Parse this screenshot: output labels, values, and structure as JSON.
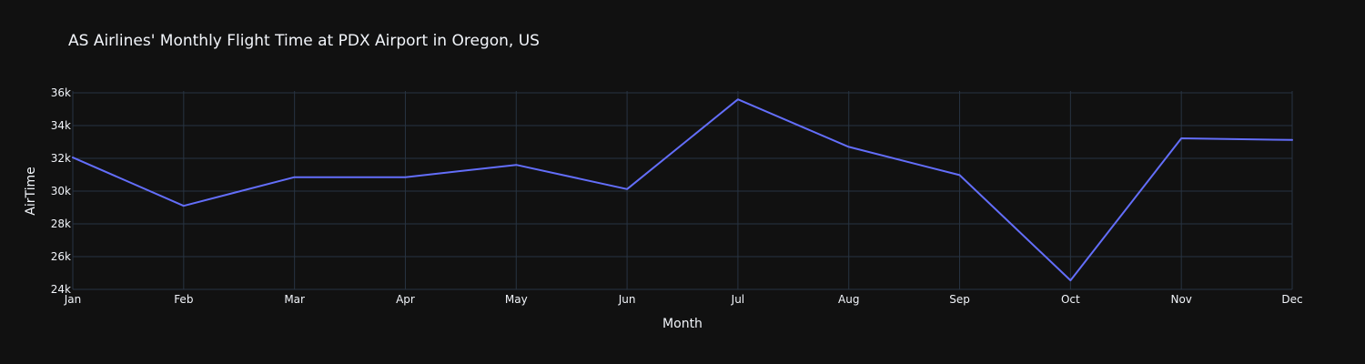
{
  "chart_data": {
    "type": "line",
    "title": "AS Airlines' Monthly Flight Time at PDX Airport in Oregon, US",
    "xlabel": "Month",
    "ylabel": "AirTime",
    "categories": [
      "Jan",
      "Feb",
      "Mar",
      "Apr",
      "May",
      "Jun",
      "Jul",
      "Aug",
      "Sep",
      "Oct",
      "Nov",
      "Dec"
    ],
    "series": [
      {
        "values": [
          32050,
          29100,
          30850,
          30850,
          31600,
          30120,
          35600,
          32700,
          30980,
          24550,
          33220,
          33120
        ]
      }
    ],
    "ylim": [
      24000,
      36500
    ],
    "yticks": [
      24000,
      26000,
      28000,
      30000,
      32000,
      34000,
      36000
    ],
    "ytick_labels": [
      "24k",
      "26k",
      "28k",
      "30k",
      "32k",
      "34k",
      "36k"
    ],
    "grid": true,
    "legend": "none",
    "colors": {
      "background": "#111111",
      "grid": "#283442",
      "text": "#f2f5fa",
      "line": "#636efa"
    }
  }
}
